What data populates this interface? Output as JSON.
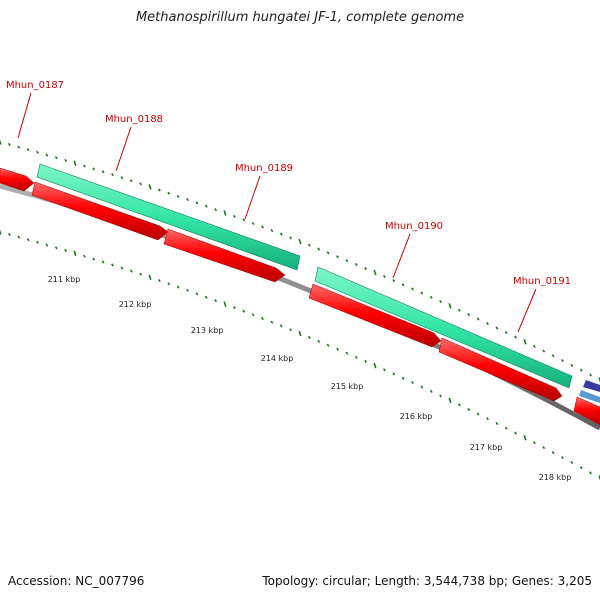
{
  "title": "Methanospirillum hungatei JF-1, complete genome",
  "accession_text": "Accession: NC_007796",
  "summary_text": "Topology: circular; Length: 3,544,738 bp; Genes: 3,205",
  "colors": {
    "backbone": "#808080",
    "cds": "#ff0000",
    "gene": "#33e6a6",
    "tick": "#1a7a1a",
    "label": "#cc0000",
    "other_feature": "#3a3aa0"
  },
  "genes": [
    {
      "name": "Mhun_0187"
    },
    {
      "name": "Mhun_0188"
    },
    {
      "name": "Mhun_0189"
    },
    {
      "name": "Mhun_0190"
    },
    {
      "name": "Mhun_0191"
    }
  ],
  "scale_labels": [
    "211 kbp",
    "212 kbp",
    "213 kbp",
    "214 kbp",
    "215 kbp",
    "216 kbp",
    "217 kbp",
    "218 kbp"
  ]
}
